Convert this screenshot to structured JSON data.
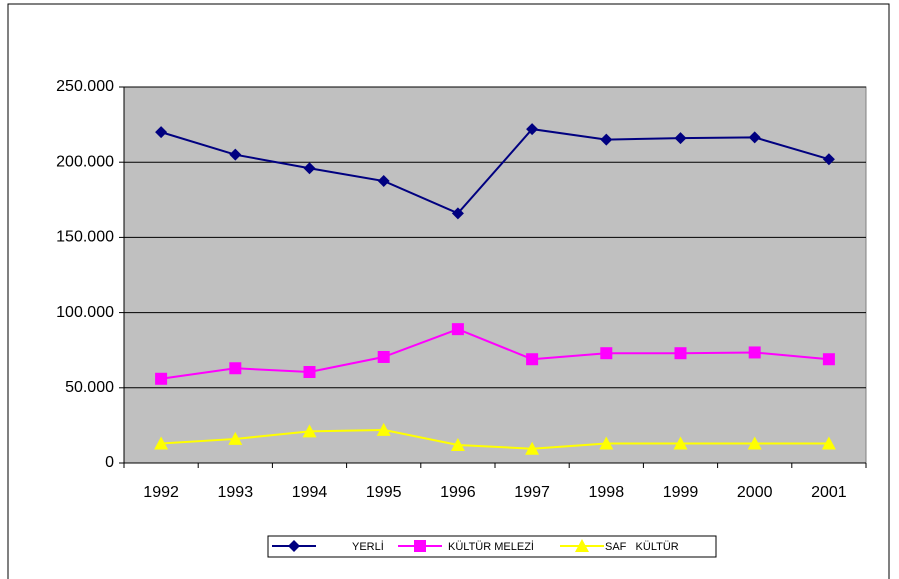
{
  "chart_data": {
    "type": "line",
    "categories": [
      "1992",
      "1993",
      "1994",
      "1995",
      "1996",
      "1997",
      "1998",
      "1999",
      "2000",
      "2001"
    ],
    "series": [
      {
        "name": "YERLİ",
        "color": "#000080",
        "marker": "diamond",
        "values": [
          220000,
          205000,
          196000,
          187500,
          166000,
          222000,
          215000,
          216000,
          216500,
          202000
        ]
      },
      {
        "name": "KÜLTÜR MELEZİ",
        "color": "#ff00ff",
        "marker": "square",
        "values": [
          56000,
          63000,
          60500,
          70500,
          89000,
          69000,
          73000,
          73000,
          73500,
          69000
        ]
      },
      {
        "name": "SAF   KÜLTÜR",
        "color": "#ffff00",
        "marker": "triangle",
        "values": [
          13000,
          16000,
          21000,
          22000,
          12000,
          9500,
          13000,
          13000,
          13000,
          13000
        ]
      }
    ],
    "ylim": [
      0,
      250000
    ],
    "yticks": [
      0,
      {
        "value": 50000,
        "label": "50.000"
      },
      {
        "value": 100000,
        "label": "100.000"
      },
      {
        "value": 150000,
        "label": "150.000"
      },
      {
        "value": 200000,
        "label": "200.000"
      },
      {
        "value": 250000,
        "label": "250.000"
      }
    ],
    "grid": true,
    "plot_background": "#c0c0c0",
    "legend": "bottom"
  }
}
